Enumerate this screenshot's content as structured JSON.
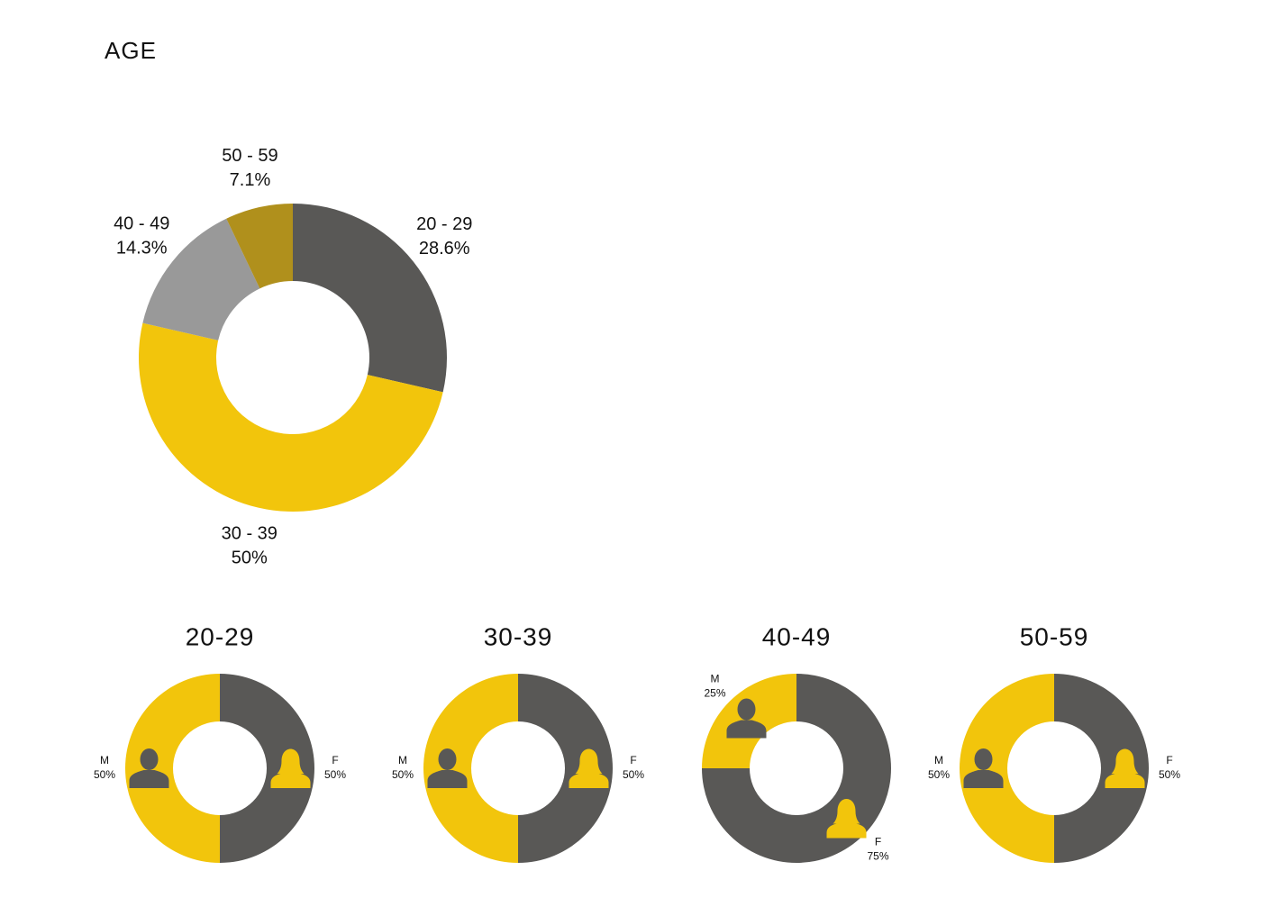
{
  "chart_data": [
    {
      "type": "donut",
      "title": "AGE",
      "categories": [
        "20 - 29",
        "30 - 39",
        "40 - 49",
        "50 - 59"
      ],
      "values": [
        28.6,
        50,
        14.3,
        7.1
      ],
      "value_labels": [
        "28.6%",
        "50%",
        "14.3%",
        "7.1%"
      ],
      "colors": [
        "#595856",
        "#f2c50c",
        "#999999",
        "#b0901c"
      ]
    },
    {
      "type": "donut",
      "title": "20-29",
      "categories": [
        "F",
        "M"
      ],
      "values": [
        50,
        50
      ],
      "value_labels": [
        "50%",
        "50%"
      ],
      "colors": [
        "#595856",
        "#f2c50c"
      ]
    },
    {
      "type": "donut",
      "title": "30-39",
      "categories": [
        "F",
        "M"
      ],
      "values": [
        50,
        50
      ],
      "value_labels": [
        "50%",
        "50%"
      ],
      "colors": [
        "#595856",
        "#f2c50c"
      ]
    },
    {
      "type": "donut",
      "title": "40-49",
      "categories": [
        "F",
        "M"
      ],
      "values": [
        75,
        25
      ],
      "value_labels": [
        "75%",
        "25%"
      ],
      "colors": [
        "#595856",
        "#f2c50c"
      ]
    },
    {
      "type": "donut",
      "title": "50-59",
      "categories": [
        "F",
        "M"
      ],
      "values": [
        50,
        50
      ],
      "value_labels": [
        "50%",
        "50%"
      ],
      "colors": [
        "#595856",
        "#f2c50c"
      ]
    }
  ]
}
